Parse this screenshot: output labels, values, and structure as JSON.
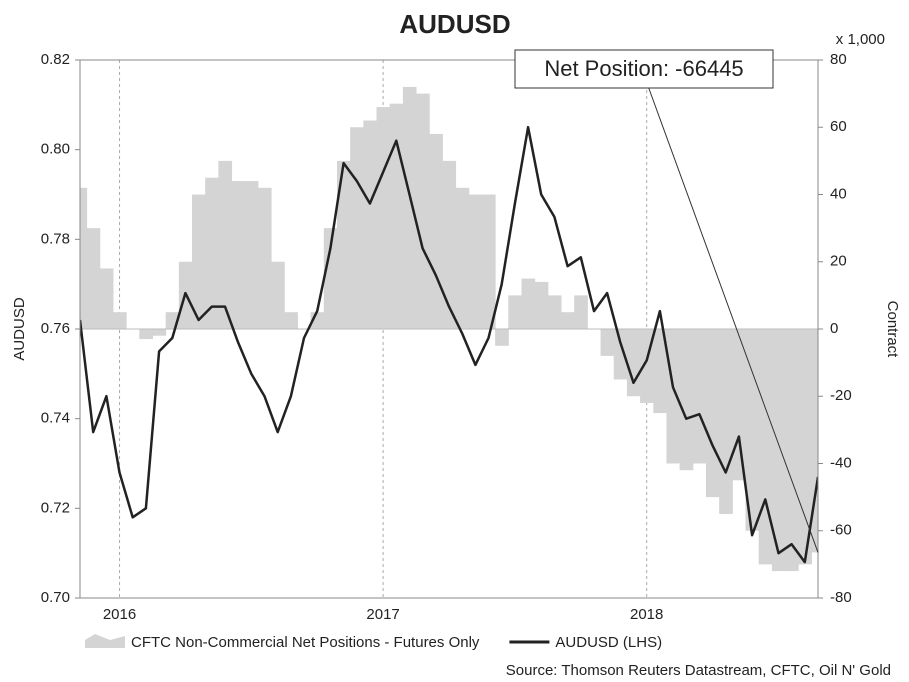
{
  "chart_data": {
    "type": "area-line",
    "title": "AUDUSD",
    "y_label": "AUDUSD",
    "y2_label": "Contract",
    "y2_unit": "x 1,000",
    "annotation": "Net Position: -66445",
    "source": "Source: Thomson Reuters Datastream, CFTC, Oil N' Gold",
    "x": [
      2015.85,
      2015.9,
      2015.95,
      2016.0,
      2016.05,
      2016.1,
      2016.15,
      2016.2,
      2016.25,
      2016.3,
      2016.35,
      2016.4,
      2016.45,
      2016.5,
      2016.55,
      2016.6,
      2016.65,
      2016.7,
      2016.75,
      2016.8,
      2016.85,
      2016.9,
      2016.95,
      2017.0,
      2017.05,
      2017.1,
      2017.15,
      2017.2,
      2017.25,
      2017.3,
      2017.35,
      2017.4,
      2017.45,
      2017.5,
      2017.55,
      2017.6,
      2017.65,
      2017.7,
      2017.75,
      2017.8,
      2017.85,
      2017.9,
      2017.95,
      2018.0,
      2018.05,
      2018.1,
      2018.15,
      2018.2,
      2018.25,
      2018.3,
      2018.35,
      2018.4,
      2018.45,
      2018.5,
      2018.55,
      2018.6,
      2018.65
    ],
    "xlim": [
      2015.85,
      2018.65
    ],
    "xticks": [
      2016,
      2017,
      2018
    ],
    "ylim": [
      0.7,
      0.82
    ],
    "yticks": [
      {
        "value": 0.7,
        "label": "0.70"
      },
      0.72,
      0.74,
      0.76,
      0.78,
      {
        "value": 0.8,
        "label": "0.80"
      },
      0.82
    ],
    "y2lim": [
      -80,
      80
    ],
    "y2ticks": [
      -80,
      -60,
      -40,
      -20,
      0,
      20,
      40,
      60,
      80
    ],
    "grid": true,
    "series": [
      {
        "name": "CFTC Non-Commercial Net Positions - Futures Only",
        "kind": "area",
        "axis": "y2",
        "color": "#d4d4d4",
        "values": [
          42,
          30,
          18,
          5,
          0,
          -3,
          -2,
          5,
          20,
          40,
          45,
          50,
          44,
          44,
          42,
          20,
          5,
          0,
          5,
          30,
          50,
          60,
          62,
          66,
          67,
          72,
          70,
          58,
          50,
          42,
          40,
          40,
          -5,
          10,
          15,
          14,
          10,
          5,
          10,
          0,
          -8,
          -15,
          -20,
          -22,
          -25,
          -40,
          -42,
          -40,
          -50,
          -55,
          -45,
          -60,
          -70,
          -72,
          -72,
          -70,
          -66.445
        ]
      },
      {
        "name": "AUDUSD (LHS)",
        "kind": "line",
        "color": "#222222",
        "values": [
          0.762,
          0.737,
          0.745,
          0.728,
          0.718,
          0.72,
          0.755,
          0.758,
          0.768,
          0.762,
          0.765,
          0.765,
          0.757,
          0.75,
          0.745,
          0.737,
          0.745,
          0.758,
          0.764,
          0.778,
          0.797,
          0.793,
          0.788,
          0.795,
          0.802,
          0.79,
          0.778,
          0.772,
          0.765,
          0.759,
          0.752,
          0.758,
          0.77,
          0.788,
          0.805,
          0.79,
          0.785,
          0.774,
          0.776,
          0.764,
          0.768,
          0.757,
          0.748,
          0.753,
          0.764,
          0.747,
          0.74,
          0.741,
          0.734,
          0.728,
          0.736,
          0.714,
          0.722,
          0.71,
          0.712,
          0.708,
          0.727
        ]
      }
    ]
  }
}
